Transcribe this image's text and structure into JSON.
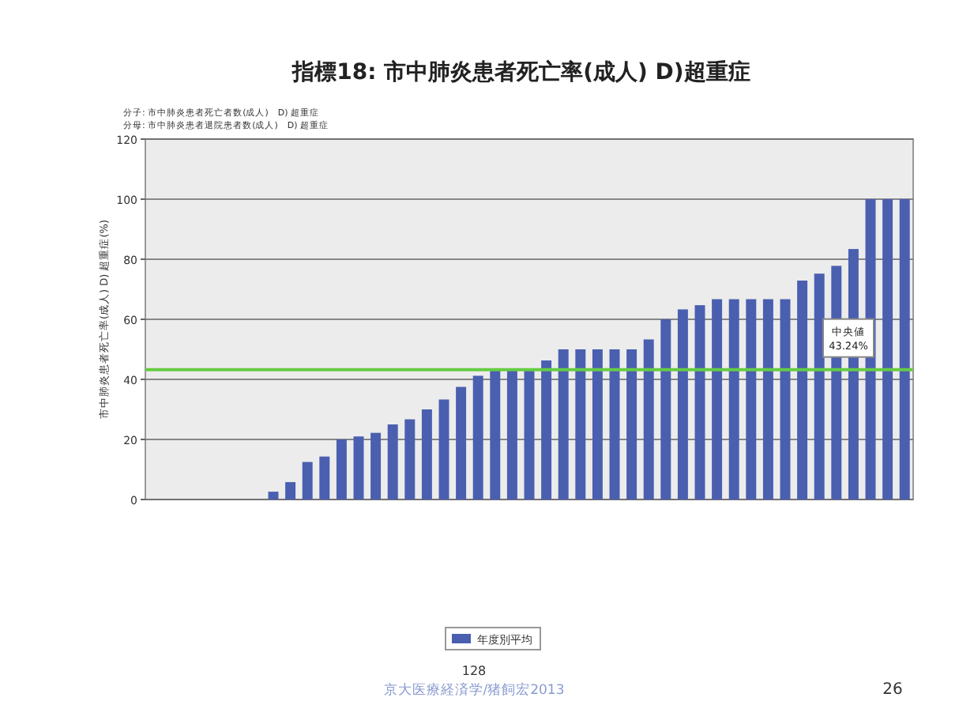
{
  "chart_data": {
    "type": "bar",
    "title": "指標18:  市中肺炎患者死亡率(成人) D)超重症",
    "annotations": [
      "分子: 市中肺炎患者死亡者数(成人)　D) 超重症",
      "分母: 市中肺炎患者退院患者数(成人)　D) 超重症",
      "128",
      "京大医療経済学/猪飼宏2013",
      "26"
    ],
    "ylabel": "市中肺炎患者死亡率(成人) D) 超重症(%)",
    "categories": [
      null,
      null,
      null,
      null,
      null,
      null,
      null,
      null,
      null,
      null,
      null,
      null,
      null,
      null,
      null,
      null,
      null,
      null,
      null,
      null,
      null,
      null,
      null,
      null,
      null,
      null,
      null,
      null,
      null,
      null,
      null,
      null,
      null,
      null,
      null,
      null,
      null,
      null,
      null,
      null,
      null,
      null,
      null,
      null,
      null
    ],
    "series": [
      {
        "name": "年度別平均",
        "color": "#4a5fb0",
        "values": [
          0,
          0,
          0,
          0,
          0,
          0,
          0,
          2.6,
          5.8,
          12.5,
          14.3,
          20,
          21,
          22.2,
          25,
          26.7,
          30,
          33.3,
          37.5,
          41.2,
          42.9,
          42.9,
          42.9,
          46.3,
          50,
          50,
          50,
          50,
          50,
          53.3,
          60,
          63.3,
          64.7,
          66.7,
          66.7,
          66.7,
          66.7,
          66.7,
          72.9,
          75.2,
          77.8,
          83.4,
          100,
          100,
          100
        ]
      }
    ],
    "ylim": [
      0,
      120
    ],
    "yticks": [
      0,
      20,
      40,
      60,
      80,
      100,
      120
    ],
    "grid": "y",
    "ref_lines": [
      {
        "axis": "y",
        "value": 43.24,
        "label": "中央値 43.24%",
        "color": "#66cc44"
      }
    ],
    "legend": "bottom"
  }
}
